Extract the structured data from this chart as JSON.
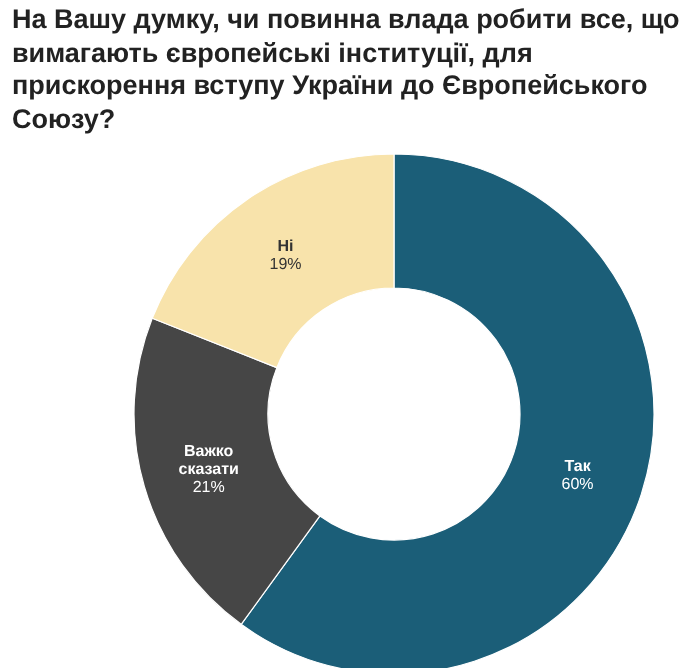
{
  "chart_data": {
    "type": "donut",
    "title": "На Вашу думку, чи повинна влада робити все, що вимагають європейські інституції, для прискорення вступу України до Європейського Союзу?",
    "categories": [
      "Так",
      "Важко сказати",
      "Ні"
    ],
    "values": [
      60,
      21,
      19
    ],
    "value_labels": [
      "60%",
      "21%",
      "19%"
    ],
    "colors": [
      "#1b5e78",
      "#464646",
      "#f8e3ab"
    ],
    "legend": false
  }
}
